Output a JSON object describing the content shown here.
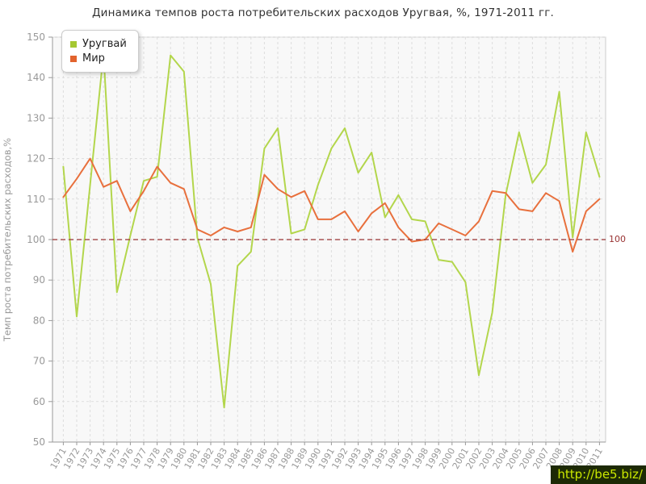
{
  "title": "Динамика темпов роста потребительских расходов Уругвая, %, 1971-2011 гг.",
  "watermark": "http://be5.biz/",
  "reference_line": {
    "value": 100,
    "label": "100",
    "color": "#993333"
  },
  "legend": [
    {
      "label": "Уругвай",
      "color": "#a5c832"
    },
    {
      "label": "Мир",
      "color": "#e2632d"
    }
  ],
  "chart_data": {
    "type": "line",
    "title": "Динамика темпов роста потребительских расходов Уругвая, %, 1971-2011 гг.",
    "xlabel": "",
    "ylabel": "Темп роста потребительских расходов,%",
    "ylim": [
      50,
      150
    ],
    "ytick_step": 10,
    "grid": true,
    "legend_position": "top-left",
    "categories": [
      1971,
      1972,
      1973,
      1974,
      1975,
      1976,
      1977,
      1978,
      1979,
      1980,
      1981,
      1982,
      1983,
      1984,
      1985,
      1986,
      1987,
      1988,
      1989,
      1990,
      1991,
      1992,
      1993,
      1994,
      1995,
      1996,
      1997,
      1998,
      1999,
      2000,
      2001,
      2002,
      2003,
      2004,
      2005,
      2006,
      2007,
      2008,
      2009,
      2010,
      2011
    ],
    "series": [
      {
        "name": "Уругвай",
        "color": "#b3d64c",
        "values": [
          118,
          81,
          113.5,
          146,
          87,
          101,
          114.5,
          115.5,
          145.5,
          141.5,
          100.5,
          89,
          58.5,
          93.5,
          97,
          122.5,
          127.5,
          101.5,
          102.5,
          113.5,
          122.5,
          127.5,
          116.5,
          121.5,
          105.5,
          111,
          105,
          104.5,
          95,
          94.5,
          89.5,
          66.5,
          82,
          111,
          126.5,
          114,
          118.5,
          136.5,
          100.5,
          126.5,
          115.5
        ]
      },
      {
        "name": "Мир",
        "color": "#e8703d",
        "values": [
          110.5,
          115,
          120,
          113,
          114.5,
          107,
          112,
          118,
          114,
          112.5,
          102.5,
          101,
          103,
          102,
          103,
          116,
          112.5,
          110.5,
          112,
          105,
          105,
          107,
          102,
          106.5,
          109,
          103,
          99.5,
          100,
          104,
          102.5,
          101,
          104.5,
          112,
          111.5,
          107.5,
          107,
          111.5,
          109.5,
          97,
          107,
          110
        ]
      }
    ]
  }
}
